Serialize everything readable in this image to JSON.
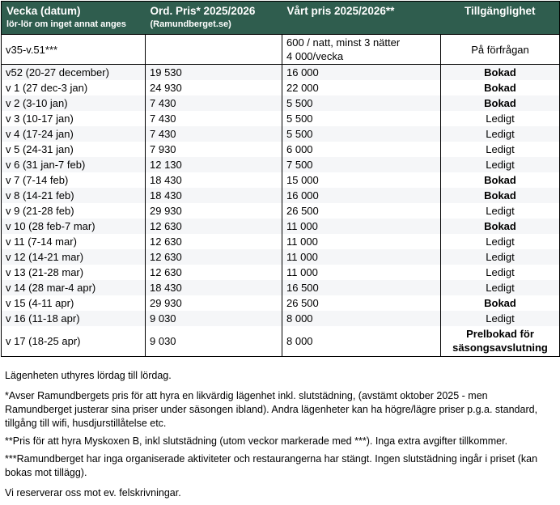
{
  "colors": {
    "header_bg": "#2F5D4E",
    "stripe_bg": "#F5F6F8",
    "header_text": "#FFFFFF"
  },
  "table": {
    "header": {
      "week": {
        "title": "Vecka (datum)",
        "subtitle": "lör-lör om inget annat anges"
      },
      "ord_pris": {
        "title": "Ord. Pris* 2025/2026",
        "subtitle": "(Ramundberget.se)"
      },
      "vart_pris": {
        "title": "Vårt pris 2025/2026**"
      },
      "availability": {
        "title": "Tillgänglighet"
      }
    },
    "rows": [
      {
        "week": "v35-v.51***",
        "ord_pris": "",
        "our_pris": "600 / natt, minst 3 nätter\n4 000/vecka",
        "availability": "På förfrågan",
        "availability_bold": false,
        "special": true,
        "tall": true
      },
      {
        "week": "v52 (20-27 december)",
        "ord_pris": "19 530",
        "our_pris": "16 000",
        "availability": "Bokad",
        "availability_bold": true,
        "special": false,
        "tall": false
      },
      {
        "week": "v 1 (27 dec-3 jan)",
        "ord_pris": "24 930",
        "our_pris": "22 000",
        "availability": "Bokad",
        "availability_bold": true,
        "special": false,
        "tall": false
      },
      {
        "week": "v 2 (3-10 jan)",
        "ord_pris": "7 430",
        "our_pris": "5 500",
        "availability": "Bokad",
        "availability_bold": true,
        "special": false,
        "tall": false
      },
      {
        "week": "v 3 (10-17 jan)",
        "ord_pris": "7 430",
        "our_pris": "5 500",
        "availability": "Ledigt",
        "availability_bold": false,
        "special": false,
        "tall": false
      },
      {
        "week": "v 4 (17-24 jan)",
        "ord_pris": "7 430",
        "our_pris": "5 500",
        "availability": "Ledigt",
        "availability_bold": false,
        "special": false,
        "tall": false
      },
      {
        "week": "v 5 (24-31 jan)",
        "ord_pris": "7 930",
        "our_pris": "6 000",
        "availability": "Ledigt",
        "availability_bold": false,
        "special": false,
        "tall": false
      },
      {
        "week": "v 6 (31 jan-7 feb)",
        "ord_pris": "12 130",
        "our_pris": "7 500",
        "availability": "Ledigt",
        "availability_bold": false,
        "special": false,
        "tall": false
      },
      {
        "week": "v 7 (7-14 feb)",
        "ord_pris": "18 430",
        "our_pris": "15 000",
        "availability": "Bokad",
        "availability_bold": true,
        "special": false,
        "tall": false
      },
      {
        "week": "v 8 (14-21 feb)",
        "ord_pris": "18 430",
        "our_pris": "16 000",
        "availability": "Bokad",
        "availability_bold": true,
        "special": false,
        "tall": false
      },
      {
        "week": "v 9 (21-28 feb)",
        "ord_pris": "29 930",
        "our_pris": "26 500",
        "availability": "Ledigt",
        "availability_bold": false,
        "special": false,
        "tall": false
      },
      {
        "week": "v 10 (28 feb-7 mar)",
        "ord_pris": "12 630",
        "our_pris": "11 000",
        "availability": "Bokad",
        "availability_bold": true,
        "special": false,
        "tall": false
      },
      {
        "week": "v 11 (7-14 mar)",
        "ord_pris": "12 630",
        "our_pris": "11 000",
        "availability": "Ledigt",
        "availability_bold": false,
        "special": false,
        "tall": false
      },
      {
        "week": "v 12 (14-21 mar)",
        "ord_pris": "12 630",
        "our_pris": "11 000",
        "availability": "Ledigt",
        "availability_bold": false,
        "special": false,
        "tall": false
      },
      {
        "week": "v 13 (21-28 mar)",
        "ord_pris": "12 630",
        "our_pris": "11 000",
        "availability": "Ledigt",
        "availability_bold": false,
        "special": false,
        "tall": false
      },
      {
        "week": "v 14 (28 mar-4 apr)",
        "ord_pris": "18 430",
        "our_pris": "16 500",
        "availability": "Ledigt",
        "availability_bold": false,
        "special": false,
        "tall": false
      },
      {
        "week": "v 15 (4-11 apr)",
        "ord_pris": "29 930",
        "our_pris": "26 500",
        "availability": "Bokad",
        "availability_bold": true,
        "special": false,
        "tall": false
      },
      {
        "week": "v 16 (11-18 apr)",
        "ord_pris": "9 030",
        "our_pris": "8 000",
        "availability": "Ledigt",
        "availability_bold": false,
        "special": false,
        "tall": false
      },
      {
        "week": "v 17 (18-25 apr)",
        "ord_pris": "9 030",
        "our_pris": "8 000",
        "availability": "Prelbokad för säsongsavslutning",
        "availability_bold": true,
        "special": false,
        "tall": true
      }
    ]
  },
  "notes": [
    "Lägenheten uthyres lördag till lördag.",
    "*Avser Ramundbergets pris för att hyra en likvärdig lägenhet inkl. slutstädning, (avstämt oktober 2025 - men Ramundberget justerar sina priser under säsongen ibland). Andra lägenheter kan ha högre/lägre priser p.g.a. standard, tillgång till wifi, husdjurstillåtelse etc.",
    "**Pris för att hyra Myskoxen B, inkl slutstädning (utom veckor markerade med ***). Inga extra avgifter tillkommer.",
    "***Ramundberget har inga organiserade aktiviteter och restaurangerna har stängt. Ingen slutstädning ingår i priset (kan bokas mot tillägg).",
    "Vi reserverar oss mot ev. felskrivningar."
  ]
}
